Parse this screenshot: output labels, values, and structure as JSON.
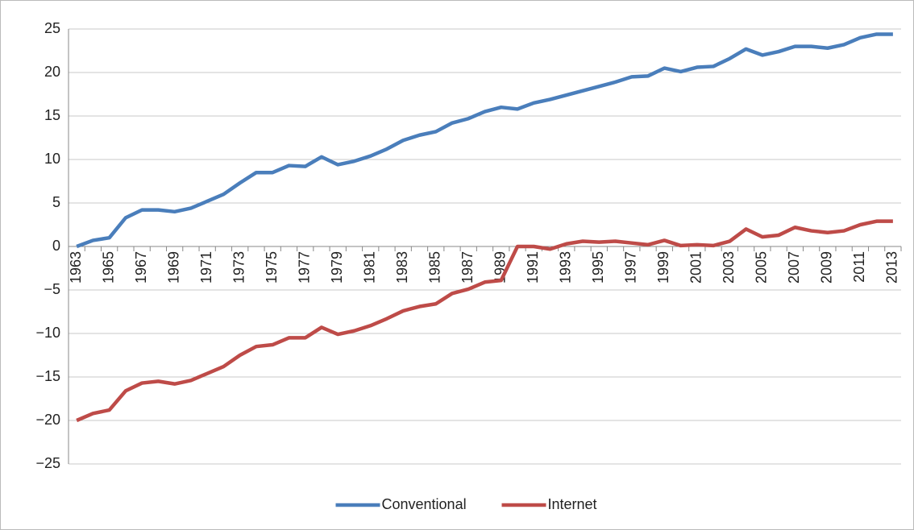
{
  "chart_data": {
    "type": "line",
    "categories": [
      "1963",
      null,
      "1965",
      null,
      "1967",
      null,
      "1969",
      null,
      "1971",
      null,
      "1973",
      null,
      "1975",
      null,
      "1977",
      null,
      "1979",
      null,
      "1981",
      null,
      "1983",
      null,
      "1985",
      null,
      "1987",
      null,
      "1989",
      null,
      "1991",
      null,
      "1993",
      null,
      "1995",
      null,
      "1997",
      null,
      "1999",
      null,
      "2001",
      null,
      "2003",
      null,
      "2005",
      null,
      "2007",
      null,
      "2009",
      null,
      "2011",
      null,
      "2013"
    ],
    "series": [
      {
        "name": "Conventional",
        "color": "#4a7ebb",
        "values": [
          0,
          0.7,
          1.0,
          3.3,
          4.2,
          4.2,
          4.0,
          4.4,
          5.2,
          6.0,
          7.3,
          8.5,
          8.5,
          9.3,
          9.2,
          10.3,
          9.4,
          9.8,
          10.4,
          11.2,
          12.2,
          12.8,
          13.2,
          14.2,
          14.7,
          15.5,
          16.0,
          15.8,
          16.5,
          16.9,
          17.4,
          17.9,
          18.4,
          18.9,
          19.5,
          19.6,
          20.5,
          20.1,
          20.6,
          20.7,
          21.6,
          22.7,
          22.0,
          22.4,
          23.0,
          23.0,
          22.8,
          23.2,
          24.0,
          24.4,
          24.4
        ]
      },
      {
        "name": "Internet",
        "color": "#be4b48",
        "values": [
          -20,
          -19.2,
          -18.8,
          -16.6,
          -15.7,
          -15.5,
          -15.8,
          -15.4,
          -14.6,
          -13.8,
          -12.5,
          -11.5,
          -11.3,
          -10.5,
          -10.5,
          -9.3,
          -10.1,
          -9.7,
          -9.1,
          -8.3,
          -7.4,
          -6.9,
          -6.6,
          -5.4,
          -4.9,
          -4.1,
          -3.9,
          0,
          0,
          -0.3,
          0.3,
          0.6,
          0.5,
          0.6,
          0.4,
          0.2,
          0.7,
          0.1,
          0.2,
          0.1,
          0.6,
          2.0,
          1.1,
          1.3,
          2.2,
          1.8,
          1.6,
          1.8,
          2.5,
          2.9,
          2.9
        ]
      }
    ],
    "ylim": [
      -25,
      25
    ],
    "yticks": [
      {
        "value": -25,
        "label": "−25"
      },
      {
        "value": -20,
        "label": "−20"
      },
      {
        "value": -15,
        "label": "−15"
      },
      {
        "value": -10,
        "label": "−10"
      },
      {
        "value": -5,
        "label": "−5"
      },
      0,
      5,
      10,
      15,
      20,
      25
    ],
    "grid": true,
    "legend": "bottom"
  }
}
